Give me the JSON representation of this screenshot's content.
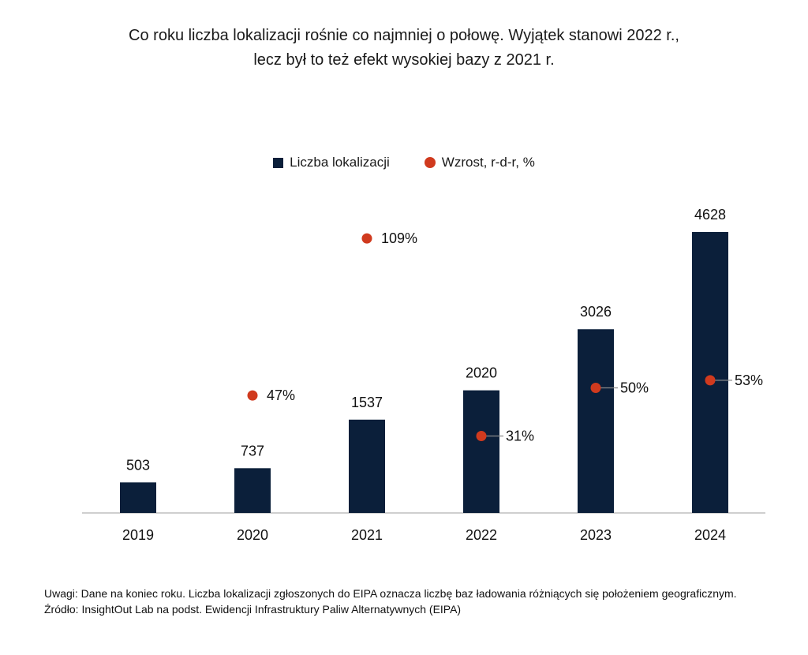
{
  "title_lines": [
    "Co roku liczba lokalizacji rośnie co najmniej o połowę. Wyjątek stanowi 2022 r.,",
    "lecz był to też efekt wysokiej bazy z 2021 r."
  ],
  "notes": {
    "line1": "Uwagi: Dane na koniec roku. Liczba lokalizacji zgłoszonych do EIPA oznacza liczbę baz ładowania różniących się położeniem geograficznym.",
    "line2": "Źródło: InsightOut Lab na podst. Ewidencji Infrastruktury Paliw Alternatywnych (EIPA)"
  },
  "colors": {
    "bar": "#0b1f3a",
    "dot": "#d03a1e",
    "axis": "#bfbfbf"
  },
  "chart_data": {
    "type": "bar",
    "categories": [
      "2019",
      "2020",
      "2021",
      "2022",
      "2023",
      "2024"
    ],
    "legend_position": "top",
    "grid": false,
    "series": [
      {
        "name": "Liczba lokalizacji",
        "kind": "bar",
        "values": [
          503,
          737,
          1537,
          2020,
          3026,
          4628
        ],
        "labels": [
          "503",
          "737",
          "1537",
          "2020",
          "3026",
          "4628"
        ]
      },
      {
        "name": "Wzrost, r-d-r, %",
        "kind": "scatter",
        "values": [
          null,
          47,
          109,
          31,
          50,
          53
        ],
        "labels": [
          "",
          "47%",
          "109%",
          "31%",
          "50%",
          "53%"
        ]
      }
    ],
    "ylim": [
      0,
      4628
    ]
  }
}
